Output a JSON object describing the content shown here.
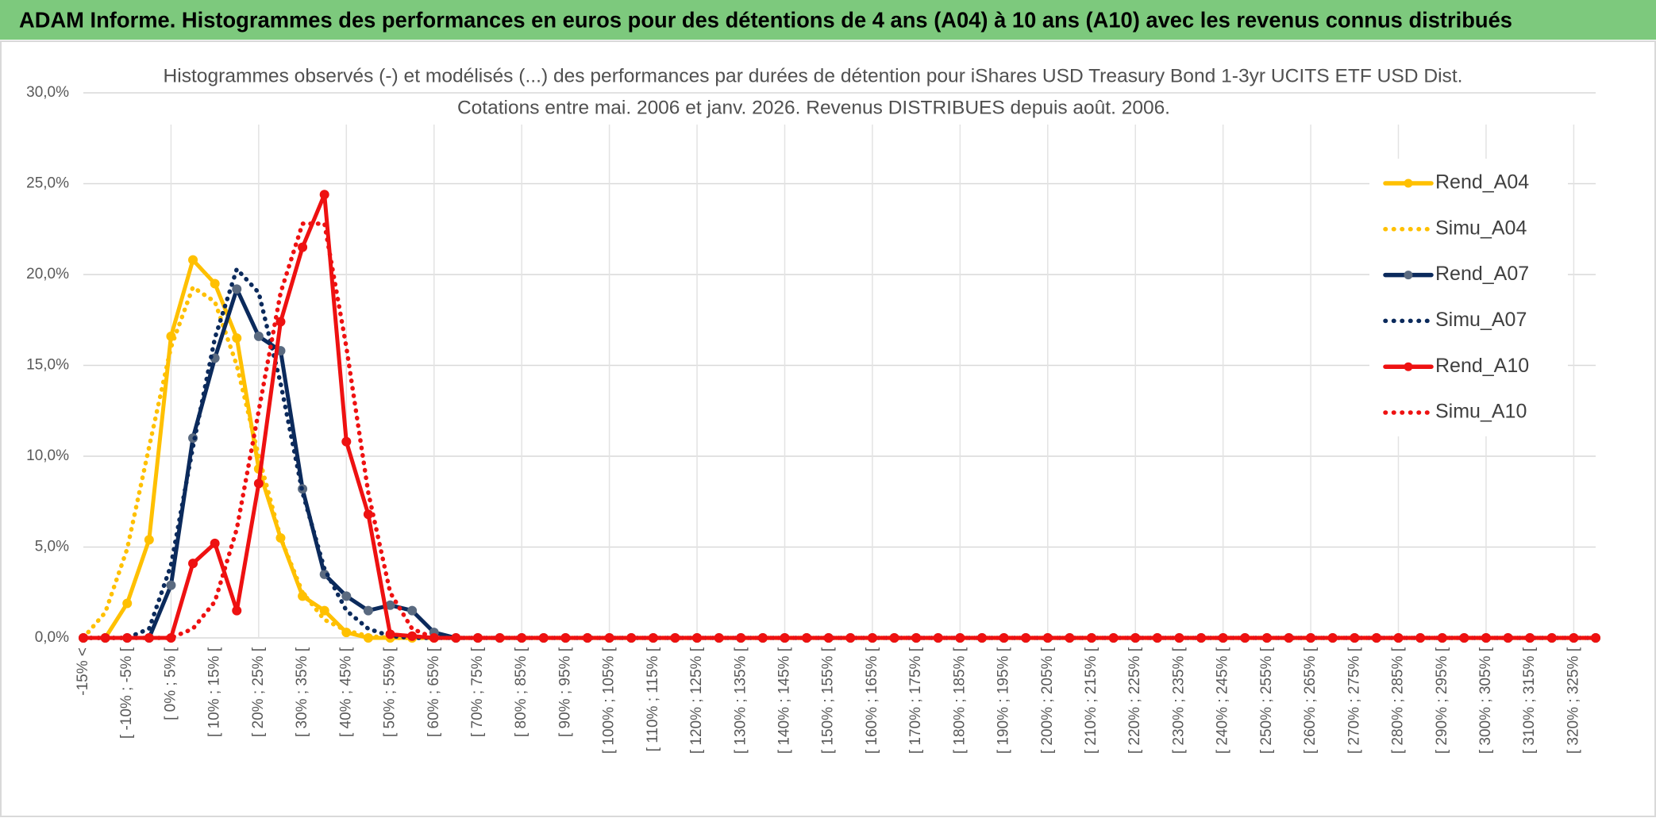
{
  "chart_data": {
    "type": "line",
    "header": "ADAM Informe. Histogrammes des performances en euros pour des détentions de 4 ans (A04) à 10 ans (A10) avec les revenus connus distribués",
    "title": "Histogrammes observés (-) et modélisés (...) des performances par durées de détention pour iShares USD Treasury Bond 1-3yr UCITS ETF USD Dist.",
    "subtitle": "Cotations entre mai. 2006 et janv. 2026. Revenus DISTRIBUES depuis août. 2006.",
    "categories": [
      "-15% <",
      null,
      "[ -10% ; -5% [",
      null,
      "[ 0% ; 5% [",
      null,
      "[ 10% ; 15% [",
      null,
      "[ 20% ; 25% [",
      null,
      "[ 30% ; 35% [",
      null,
      "[ 40% ; 45% [",
      null,
      "[ 50% ; 55% [",
      null,
      "[ 60% ; 65% [",
      null,
      "[ 70% ; 75% [",
      null,
      "[ 80% ; 85% [",
      null,
      "[ 90% ; 95% [",
      null,
      "[ 100% ; 105% [",
      null,
      "[ 110% ; 115% [",
      null,
      "[ 120% ; 125% [",
      null,
      "[ 130% ; 135% [",
      null,
      "[ 140% ; 145% [",
      null,
      "[ 150% ; 155% [",
      null,
      "[ 160% ; 165% [",
      null,
      "[ 170% ; 175% [",
      null,
      "[ 180% ; 185% [",
      null,
      "[ 190% ; 195% [",
      null,
      "[ 200% ; 205% [",
      null,
      "[ 210% ; 215% [",
      null,
      "[ 220% ; 225% [",
      null,
      "[ 230% ; 235% [",
      null,
      "[ 240% ; 245% [",
      null,
      "[ 250% ; 255% [",
      null,
      "[ 260% ; 265% [",
      null,
      "[ 270% ; 275% [",
      null,
      "[ 280% ; 285% [",
      null,
      "[ 290% ; 295% [",
      null,
      "[ 300% ; 305% [",
      null,
      "[ 310% ; 315% [",
      null,
      "[ 320% ; 325% [",
      null
    ],
    "series": [
      {
        "name": "Rend_A04",
        "color": "#ffc000",
        "style": "solid",
        "marker": true,
        "values": [
          0,
          0,
          1.9,
          5.4,
          16.6,
          20.8,
          19.5,
          16.5,
          9.3,
          5.5,
          2.3,
          1.5,
          0.3,
          0,
          0,
          0,
          0,
          0,
          0,
          0,
          0,
          0,
          0,
          0,
          0,
          0,
          0,
          0,
          0,
          0,
          0,
          0,
          0,
          0,
          0,
          0,
          0,
          0,
          0,
          0,
          0,
          0,
          0,
          0,
          0,
          0,
          0,
          0,
          0,
          0,
          0,
          0,
          0,
          0,
          0,
          0,
          0,
          0,
          0,
          0,
          0,
          0,
          0,
          0,
          0,
          0,
          0,
          0,
          0,
          0
        ]
      },
      {
        "name": "Simu_A04",
        "color": "#ffc000",
        "style": "dotted",
        "marker": false,
        "values": [
          0,
          1.4,
          4.9,
          10.5,
          16,
          19.3,
          18.5,
          15,
          10,
          5.5,
          2.5,
          1,
          0.4,
          0.1,
          0,
          0,
          0,
          0,
          0,
          0,
          0,
          0,
          0,
          0,
          0,
          0,
          0,
          0,
          0,
          0,
          0,
          0,
          0,
          0,
          0,
          0,
          0,
          0,
          0,
          0,
          0,
          0,
          0,
          0,
          0,
          0,
          0,
          0,
          0,
          0,
          0,
          0,
          0,
          0,
          0,
          0,
          0,
          0,
          0,
          0,
          0,
          0,
          0,
          0,
          0,
          0,
          0,
          0,
          0,
          0
        ]
      },
      {
        "name": "Rend_A07",
        "color": "#0b2a5c",
        "marker_color": "#5a6a80",
        "style": "solid",
        "marker": true,
        "values": [
          0,
          0,
          0,
          0,
          2.9,
          11,
          15.4,
          19.2,
          16.6,
          15.8,
          8.2,
          3.5,
          2.3,
          1.5,
          1.8,
          1.5,
          0.3,
          0,
          0,
          0,
          0,
          0,
          0,
          0,
          0,
          0,
          0,
          0,
          0,
          0,
          0,
          0,
          0,
          0,
          0,
          0,
          0,
          0,
          0,
          0,
          0,
          0,
          0,
          0,
          0,
          0,
          0,
          0,
          0,
          0,
          0,
          0,
          0,
          0,
          0,
          0,
          0,
          0,
          0,
          0,
          0,
          0,
          0,
          0,
          0,
          0,
          0,
          0,
          0,
          0
        ]
      },
      {
        "name": "Simu_A07",
        "color": "#0b2a5c",
        "style": "dotted",
        "marker": false,
        "values": [
          0,
          0,
          0,
          0.5,
          4,
          10.5,
          16.5,
          20.3,
          19,
          14,
          8,
          3.8,
          1.5,
          0.5,
          0.1,
          0,
          0,
          0,
          0,
          0,
          0,
          0,
          0,
          0,
          0,
          0,
          0,
          0,
          0,
          0,
          0,
          0,
          0,
          0,
          0,
          0,
          0,
          0,
          0,
          0,
          0,
          0,
          0,
          0,
          0,
          0,
          0,
          0,
          0,
          0,
          0,
          0,
          0,
          0,
          0,
          0,
          0,
          0,
          0,
          0,
          0,
          0,
          0,
          0,
          0,
          0,
          0,
          0,
          0,
          0
        ]
      },
      {
        "name": "Rend_A10",
        "color": "#ee1111",
        "style": "solid",
        "marker": true,
        "values": [
          0,
          0,
          0,
          0,
          0,
          4.1,
          5.2,
          1.5,
          8.5,
          17.4,
          21.5,
          24.4,
          10.8,
          6.8,
          0.2,
          0.1,
          0,
          0,
          0,
          0,
          0,
          0,
          0,
          0,
          0,
          0,
          0,
          0,
          0,
          0,
          0,
          0,
          0,
          0,
          0,
          0,
          0,
          0,
          0,
          0,
          0,
          0,
          0,
          0,
          0,
          0,
          0,
          0,
          0,
          0,
          0,
          0,
          0,
          0,
          0,
          0,
          0,
          0,
          0,
          0,
          0,
          0,
          0,
          0,
          0,
          0,
          0,
          0,
          0,
          0
        ]
      },
      {
        "name": "Simu_A10",
        "color": "#ee1111",
        "style": "dotted",
        "marker": false,
        "values": [
          0,
          0,
          0,
          0,
          0,
          0.5,
          2,
          6,
          12.5,
          19,
          22.8,
          22.8,
          16,
          8,
          2.5,
          0.5,
          0,
          0,
          0,
          0,
          0,
          0,
          0,
          0,
          0,
          0,
          0,
          0,
          0,
          0,
          0,
          0,
          0,
          0,
          0,
          0,
          0,
          0,
          0,
          0,
          0,
          0,
          0,
          0,
          0,
          0,
          0,
          0,
          0,
          0,
          0,
          0,
          0,
          0,
          0,
          0,
          0,
          0,
          0,
          0,
          0,
          0,
          0,
          0,
          0,
          0,
          0,
          0,
          0,
          0
        ]
      }
    ],
    "ylim": [
      0,
      30
    ],
    "yticks": [
      {
        "value": 0,
        "label": "0,0%"
      },
      {
        "value": 5,
        "label": "5,0%"
      },
      {
        "value": 10,
        "label": "10,0%"
      },
      {
        "value": 15,
        "label": "15,0%"
      },
      {
        "value": 20,
        "label": "20,0%"
      },
      {
        "value": 25,
        "label": "25,0%"
      },
      {
        "value": 30,
        "label": "30,0%"
      }
    ],
    "grid": true,
    "legend": "right"
  }
}
